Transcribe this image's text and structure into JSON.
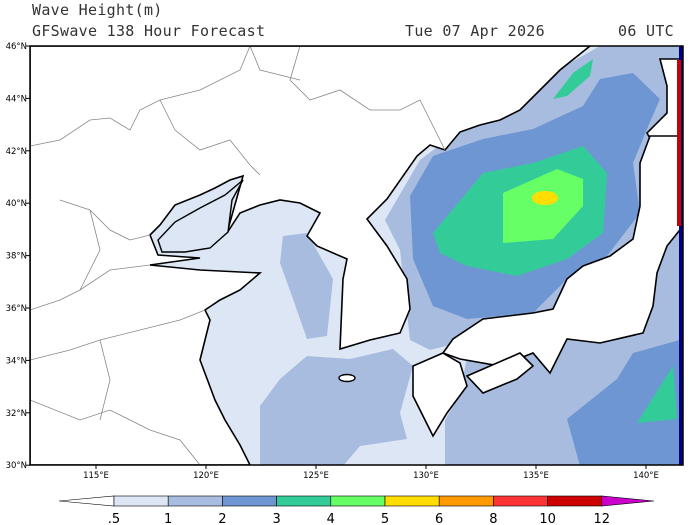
{
  "header": {
    "title": "Wave Height(m)",
    "subtitle": "GFSwave 138 Hour Forecast",
    "date": "Tue 07 Apr 2026",
    "time": "06 UTC"
  },
  "axes": {
    "lat_labels": [
      "46°N",
      "44°N",
      "42°N",
      "40°N",
      "38°N",
      "36°N",
      "34°N",
      "32°N",
      "30°N"
    ],
    "lon_labels": [
      "115°E",
      "120°E",
      "125°E",
      "130°E",
      "135°E",
      "140°E"
    ]
  },
  "colorbar": {
    "labels": [
      ".5",
      "1",
      "2",
      "3",
      "4",
      "5",
      "6",
      "8",
      "10",
      "12"
    ],
    "colors": [
      "#ffffff",
      "#dde6f5",
      "#a8bce0",
      "#6e96d2",
      "#33cc99",
      "#66ff66",
      "#ffdd00",
      "#ff9900",
      "#ff3333",
      "#cc0000",
      "#cc00cc"
    ]
  },
  "legend_colors": {
    "land": "#ffffff",
    "coast": "#000000",
    "border": "#888888",
    "edge_strip": "#000080"
  }
}
